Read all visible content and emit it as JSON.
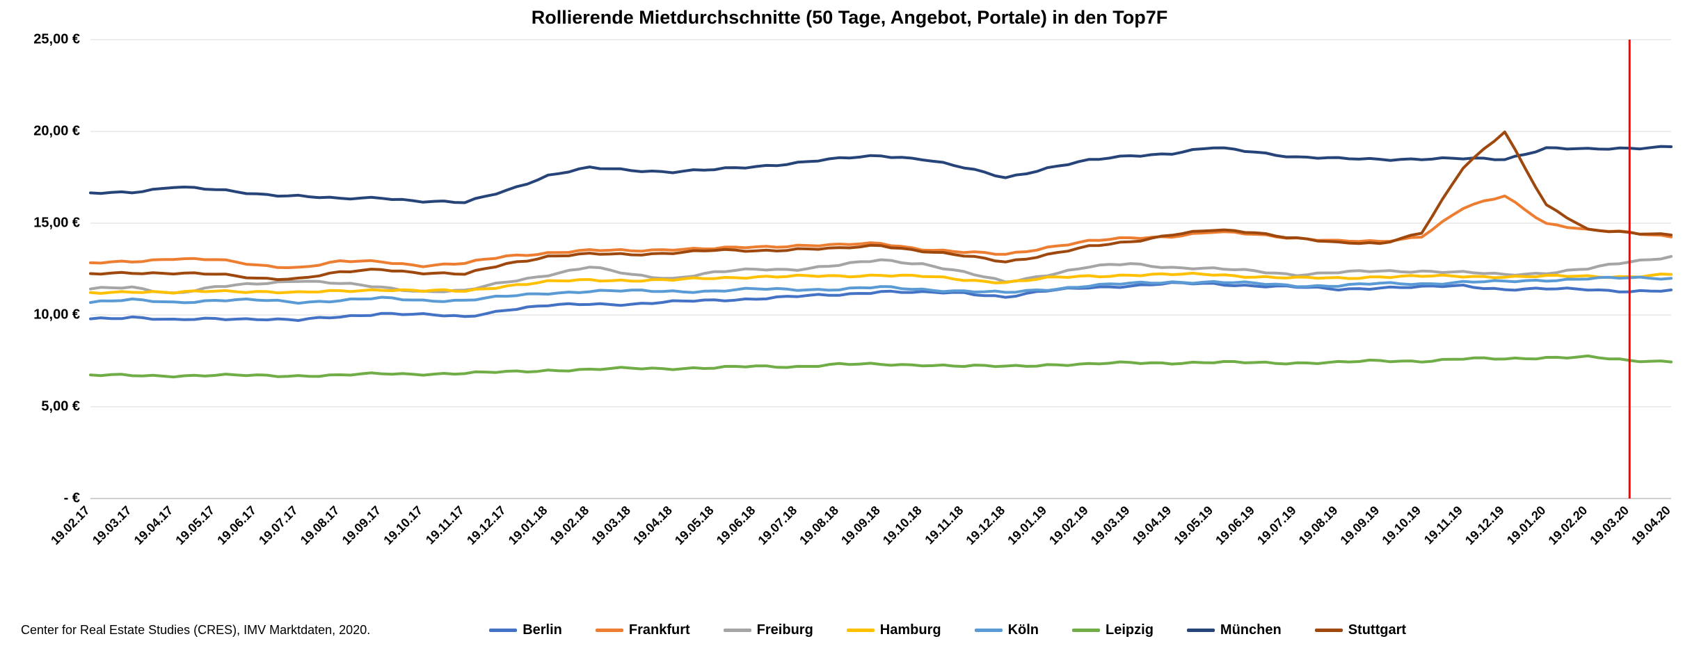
{
  "chart": {
    "title": "Rollierende Mietdurchschnitte (50 Tage, Angebot, Portale) in den Top7F",
    "source": "Center for Real Estate Studies (CRES), IMV Marktdaten, 2020.",
    "type": "line",
    "title_fontsize": 27,
    "label_fontsize": 20,
    "background_color": "#ffffff",
    "grid_color": "#d9d9d9",
    "axis_color": "#bfbfbf",
    "line_width": 4,
    "yaxis": {
      "min": 0,
      "max": 25,
      "tick_step": 5,
      "ticks": [
        {
          "v": 0,
          "label": "-   € "
        },
        {
          "v": 5,
          "label": "5,00 € "
        },
        {
          "v": 10,
          "label": "10,00 € "
        },
        {
          "v": 15,
          "label": "15,00 € "
        },
        {
          "v": 20,
          "label": "20,00 € "
        },
        {
          "v": 25,
          "label": "25,00 € "
        }
      ]
    },
    "xaxis": {
      "labels": [
        "19.02.17",
        "19.03.17",
        "19.04.17",
        "19.05.17",
        "19.06.17",
        "19.07.17",
        "19.08.17",
        "19.09.17",
        "19.10.17",
        "19.11.17",
        "19.12.17",
        "19.01.18",
        "19.02.18",
        "19.03.18",
        "19.04.18",
        "19.05.18",
        "19.06.18",
        "19.07.18",
        "19.08.18",
        "19.09.18",
        "19.10.18",
        "19.11.18",
        "19.12.18",
        "19.01.19",
        "19.02.19",
        "19.03.19",
        "19.04.19",
        "19.05.19",
        "19.06.19",
        "19.07.19",
        "19.08.19",
        "19.09.19",
        "19.10.19",
        "19.11.19",
        "19.12.19",
        "19.01.20",
        "19.02.20",
        "19.03.20",
        "19.04.20"
      ],
      "rotation_deg": -45
    },
    "marker": {
      "x_index": 37,
      "color": "#ff0000",
      "width": 3
    },
    "series": [
      {
        "name": "Berlin",
        "color": "#4472c4",
        "values": [
          9.8,
          9.9,
          9.7,
          9.8,
          9.8,
          9.7,
          9.9,
          10.1,
          10.0,
          9.9,
          10.3,
          10.5,
          10.6,
          10.6,
          10.7,
          10.8,
          10.9,
          11.0,
          11.1,
          11.3,
          11.2,
          11.2,
          11.0,
          11.3,
          11.5,
          11.6,
          11.7,
          11.7,
          11.6,
          11.5,
          11.4,
          11.5,
          11.5,
          11.6,
          11.4,
          11.4,
          11.4,
          11.3,
          11.3
        ]
      },
      {
        "name": "Frankfurt",
        "color": "#ed7d31",
        "values": [
          12.8,
          12.9,
          13.1,
          13.0,
          12.7,
          12.6,
          12.9,
          12.9,
          12.7,
          12.8,
          13.2,
          13.4,
          13.5,
          13.5,
          13.6,
          13.6,
          13.7,
          13.8,
          13.8,
          13.9,
          13.6,
          13.4,
          13.3,
          13.7,
          14.0,
          14.2,
          14.3,
          14.5,
          14.4,
          14.2,
          14.0,
          14.0,
          14.3,
          15.8,
          16.5,
          15.0,
          14.6,
          14.5,
          14.3
        ]
      },
      {
        "name": "Freiburg",
        "color": "#a5a5a5",
        "values": [
          11.4,
          11.5,
          11.2,
          11.5,
          11.7,
          11.9,
          11.7,
          11.5,
          11.3,
          11.3,
          11.8,
          12.2,
          12.6,
          12.2,
          12.0,
          12.3,
          12.5,
          12.5,
          12.7,
          13.0,
          12.8,
          12.3,
          11.8,
          12.2,
          12.6,
          12.8,
          12.6,
          12.5,
          12.4,
          12.2,
          12.3,
          12.4,
          12.4,
          12.3,
          12.2,
          12.3,
          12.5,
          12.9,
          13.2
        ]
      },
      {
        "name": "Hamburg",
        "color": "#ffc000",
        "values": [
          11.2,
          11.3,
          11.2,
          11.3,
          11.3,
          11.2,
          11.3,
          11.4,
          11.3,
          11.3,
          11.6,
          11.8,
          11.9,
          11.9,
          11.9,
          12.0,
          12.1,
          12.1,
          12.1,
          12.2,
          12.1,
          11.9,
          11.8,
          12.0,
          12.1,
          12.2,
          12.2,
          12.2,
          12.1,
          12.0,
          12.0,
          12.1,
          12.1,
          12.1,
          12.1,
          12.1,
          12.1,
          12.1,
          12.2
        ]
      },
      {
        "name": "Köln",
        "color": "#5b9bd5",
        "values": [
          10.7,
          10.8,
          10.7,
          10.8,
          10.8,
          10.7,
          10.8,
          10.9,
          10.8,
          10.8,
          11.0,
          11.2,
          11.3,
          11.3,
          11.3,
          11.3,
          11.4,
          11.4,
          11.4,
          11.5,
          11.4,
          11.3,
          11.2,
          11.4,
          11.6,
          11.7,
          11.8,
          11.8,
          11.7,
          11.6,
          11.6,
          11.7,
          11.7,
          11.8,
          11.8,
          11.9,
          12.0,
          12.0,
          12.0
        ]
      },
      {
        "name": "Leipzig",
        "color": "#70ad47",
        "values": [
          6.7,
          6.7,
          6.7,
          6.7,
          6.7,
          6.7,
          6.7,
          6.8,
          6.8,
          6.8,
          6.9,
          7.0,
          7.0,
          7.1,
          7.1,
          7.1,
          7.2,
          7.2,
          7.3,
          7.3,
          7.3,
          7.2,
          7.2,
          7.3,
          7.3,
          7.4,
          7.4,
          7.4,
          7.4,
          7.4,
          7.4,
          7.5,
          7.5,
          7.6,
          7.6,
          7.7,
          7.7,
          7.5,
          7.5
        ]
      },
      {
        "name": "München",
        "color": "#264478",
        "values": [
          16.6,
          16.7,
          17.0,
          16.8,
          16.6,
          16.5,
          16.3,
          16.4,
          16.2,
          16.1,
          16.8,
          17.6,
          18.0,
          17.9,
          17.8,
          17.9,
          18.1,
          18.3,
          18.5,
          18.7,
          18.5,
          18.0,
          17.5,
          18.0,
          18.4,
          18.7,
          18.8,
          19.1,
          18.9,
          18.6,
          18.5,
          18.5,
          18.5,
          18.5,
          18.5,
          19.1,
          19.0,
          19.1,
          19.2
        ]
      },
      {
        "name": "Stuttgart",
        "color": "#9e480e",
        "values": [
          12.2,
          12.3,
          12.3,
          12.2,
          12.0,
          12.0,
          12.3,
          12.5,
          12.3,
          12.2,
          12.8,
          13.2,
          13.3,
          13.3,
          13.4,
          13.5,
          13.5,
          13.6,
          13.6,
          13.8,
          13.5,
          13.2,
          12.9,
          13.3,
          13.7,
          14.0,
          14.4,
          14.6,
          14.5,
          14.2,
          13.9,
          13.9,
          14.5,
          18.0,
          20.0,
          16.0,
          14.6,
          14.5,
          14.4
        ]
      }
    ]
  }
}
